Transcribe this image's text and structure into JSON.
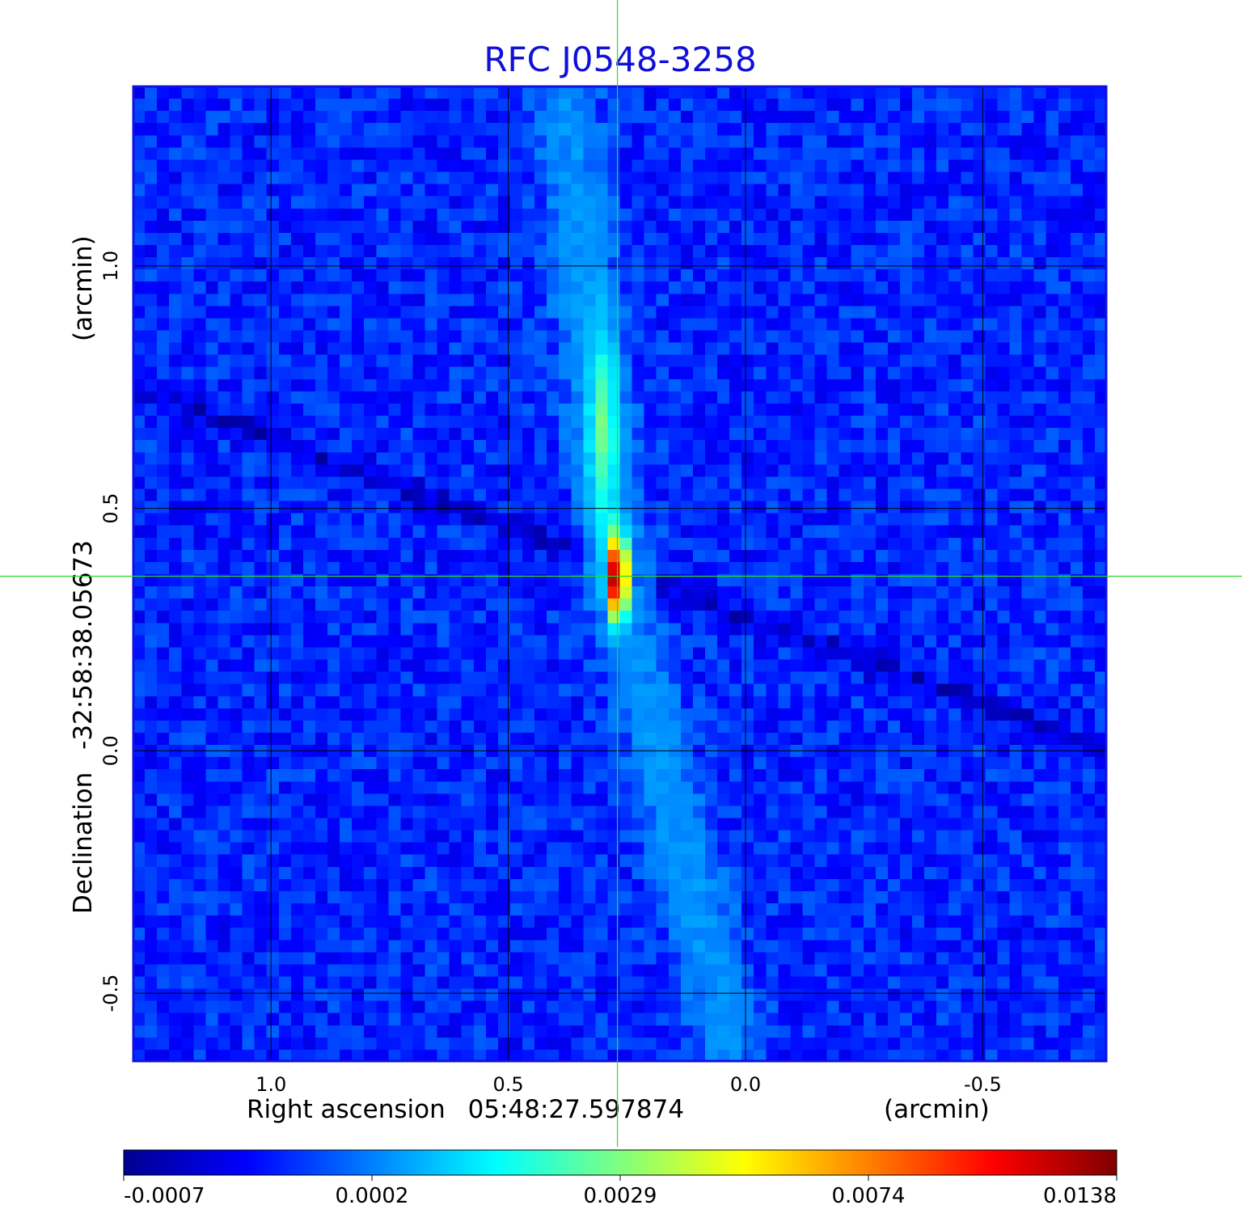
{
  "chart_data": {
    "type": "heatmap",
    "title": "RFC J0548-3258",
    "x_axis": {
      "label_prefix": "Right ascension",
      "label_value": "05:48:27.597874",
      "unit": "(arcmin)",
      "ticks": [
        1.0,
        0.5,
        0.0,
        -0.5
      ],
      "tick_labels": [
        "1.0",
        "0.5",
        "0.0",
        "-0.5"
      ],
      "range": [
        1.29,
        -0.76
      ],
      "reversed": true
    },
    "y_axis": {
      "label_prefix": "Declination",
      "label_value": "-32:58:38.05673",
      "unit": "(arcmin)",
      "ticks": [
        1.0,
        0.5,
        0.0,
        -0.5
      ],
      "tick_labels": [
        "1.0",
        "0.5",
        "0.0",
        "-0.5"
      ],
      "range": [
        -0.64,
        1.37
      ]
    },
    "grid": true,
    "crosshair": {
      "x": 0.27,
      "y": 0.36,
      "color": "#22dd22"
    },
    "colorbar": {
      "position": "bottom",
      "colormap": "jet",
      "tick_labels": [
        "-0.0007",
        "0.0002",
        "0.0029",
        "0.0074",
        "0.0138"
      ],
      "tick_fractions": [
        0,
        0.25,
        0.5,
        0.75,
        1.0
      ]
    },
    "peak": {
      "x": 0.27,
      "y": 0.36,
      "value": 0.0138
    },
    "features": [
      {
        "kind": "jet",
        "from": [
          0.38,
          1.35
        ],
        "to": [
          0.27,
          0.36
        ],
        "level": 0.0005
      },
      {
        "kind": "jet",
        "from": [
          0.27,
          0.36
        ],
        "to": [
          0.03,
          -0.62
        ],
        "level": 0.00045
      },
      {
        "kind": "stripe",
        "from": [
          1.29,
          0.75
        ],
        "to": [
          -0.76,
          0.0
        ],
        "level": -0.0003
      }
    ],
    "colors": {
      "frame": "#1010e0",
      "grid": "#000000",
      "title": "#1010d8"
    }
  }
}
